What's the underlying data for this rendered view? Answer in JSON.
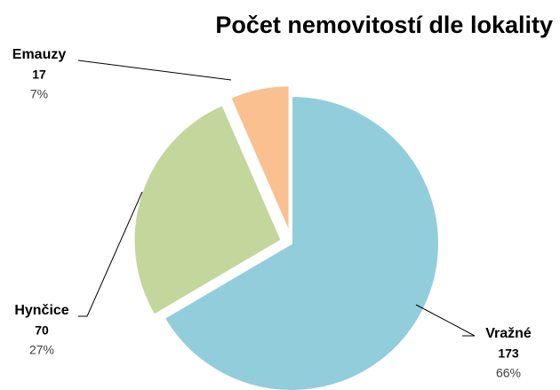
{
  "chart_data": {
    "type": "pie",
    "title": "Počet nemovitostí dle lokality",
    "categories": [
      "Vražné",
      "Hynčice",
      "Emauzy"
    ],
    "values": [
      173,
      70,
      17
    ],
    "percentages": [
      66,
      27,
      7
    ],
    "percentage_labels": [
      "66%",
      "27%",
      "7%"
    ],
    "colors": [
      "#92cddc",
      "#c3d69b",
      "#fac090"
    ]
  }
}
